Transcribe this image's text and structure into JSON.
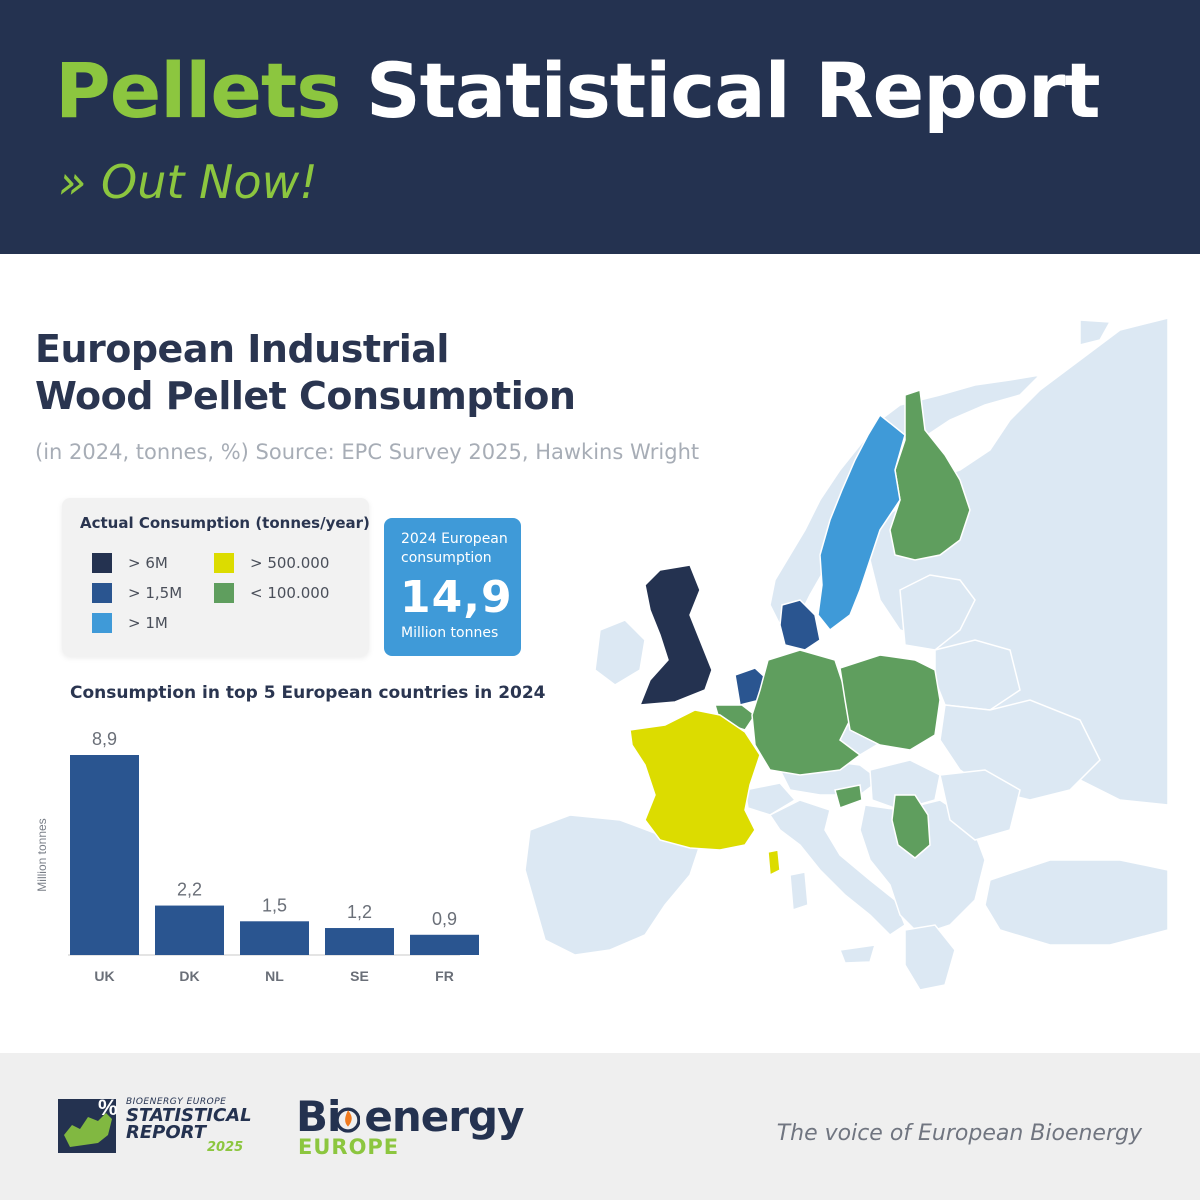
{
  "header": {
    "title_accent": "Pellets",
    "title_rest": "Statistical Report",
    "subtitle": "» Out Now!"
  },
  "chart_title": {
    "line1": "European Industrial",
    "line2": "Wood Pellet Consumption",
    "subtitle": "(in 2024, tonnes, %) Source: EPC Survey 2025, Hawkins Wright"
  },
  "legend": {
    "title": "Actual Consumption (tonnes/year)",
    "items": [
      {
        "label": "> 6M",
        "color": "#243250"
      },
      {
        "label": "> 1,5M",
        "color": "#2a5590"
      },
      {
        "label": "> 1M",
        "color": "#3f9ad8"
      },
      {
        "label": "> 500.000",
        "color": "#dcdc00"
      },
      {
        "label": "< 100.000",
        "color": "#5f9e5e"
      }
    ]
  },
  "total": {
    "label": "2024 European consumption",
    "value": "14,9",
    "unit": "Million tonnes"
  },
  "map_colors": {
    "other": "#dce8f3",
    "UK": "#243250",
    "DK": "#2a5590",
    "NL": "#2a5590",
    "SE": "#3f9ad8",
    "FR": "#dcdc00",
    "FI": "#5f9e5e",
    "DE": "#5f9e5e",
    "PL": "#5f9e5e",
    "BE": "#5f9e5e",
    "SI": "#5f9e5e",
    "RS": "#5f9e5e"
  },
  "chart_data": {
    "type": "bar",
    "title": "Consumption in top 5 European countries in 2024",
    "categories": [
      "UK",
      "DK",
      "NL",
      "SE",
      "FR"
    ],
    "values": [
      8.9,
      2.2,
      1.5,
      1.2,
      0.9
    ],
    "value_labels": [
      "8,9",
      "2,2",
      "1,5",
      "1,2",
      "0,9"
    ],
    "ylabel": "Million tonnes",
    "ylim": [
      0,
      8.9
    ],
    "bar_color": "#2a5590",
    "grid": false
  },
  "footer": {
    "sr_small": "BIOENERGY EUROPE",
    "sr_line1": "STATISTICAL",
    "sr_line2": "REPORT",
    "sr_year": "2025",
    "logo_top_a": "Bi",
    "logo_top_b": "energy",
    "logo_bottom": "EUROPE",
    "tagline": "The voice of European Bioenergy"
  }
}
